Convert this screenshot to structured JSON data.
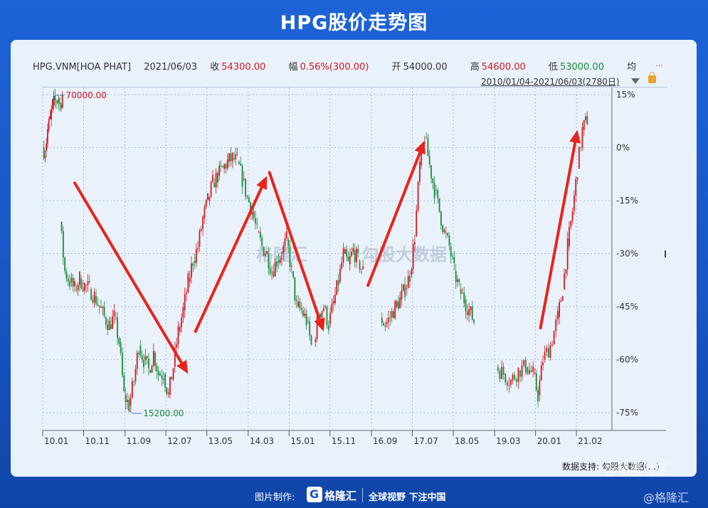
{
  "page": {
    "title": "HPG股价走势图",
    "made_by_label": "图片制作:",
    "logo_name": "格隆汇",
    "slogan": "全球视野 下注中国",
    "data_source": "数据支持: 勾股大数据(...)",
    "watermark_1": "格隆汇",
    "watermark_2": "勾股大数据",
    "corner_watermark_1": "@格隆社区",
    "corner_watermark_2": "@格隆汇"
  },
  "quote": {
    "symbol": "HPG.VNM[HOA PHAT]",
    "date": "2021/06/03",
    "close_label": "收",
    "close": "54300.00",
    "change_label": "幅",
    "change": "0.56%(300.00)",
    "open_label": "开",
    "open": "54000.00",
    "high_label": "高",
    "high": "54600.00",
    "low_label": "低",
    "low": "53000.00",
    "avg_label": "均",
    "more": "...",
    "range": "2010/01/04-2021/06/03(2780日)"
  },
  "colors": {
    "up": "#d0191f",
    "down": "#1a8a3a",
    "arrow": "#e8241c",
    "grid": "#9fb0c6",
    "annotation": "#1a73b8",
    "annotation_high": "#d0191f",
    "annotation_low": "#1a8a3a"
  },
  "chart_data": {
    "type": "candlestick",
    "y_axis": "percent",
    "ylim": [
      -80,
      17
    ],
    "yticks": [
      15,
      0,
      -15,
      -30,
      -45,
      -60,
      -75
    ],
    "ytick_labels": [
      "15%",
      "0%",
      "-15%",
      "-30%",
      "-45%",
      "-60%",
      "-75%"
    ],
    "xlim": [
      2010.0,
      2021.55
    ],
    "xticks": [
      2010.0,
      2011.0,
      2012.0,
      2013.0,
      2014.0,
      2015.0,
      2016.0,
      2017.0,
      2018.0,
      2019.0,
      2020.0,
      2021.0
    ],
    "xtick_values": [
      2010.0,
      2010.83,
      2011.67,
      2012.5,
      2013.33,
      2014.17,
      2015.0,
      2015.83,
      2016.67,
      2017.5,
      2018.33,
      2019.17,
      2020.0,
      2020.83
    ],
    "xtick_labels": [
      "10.01",
      "10.11",
      "11.09",
      "12.07",
      "13.05",
      "14.03",
      "15.01",
      "15.11",
      "16.09",
      "17.07",
      "18.05",
      "19.03",
      "20.01",
      "21.02"
    ],
    "grid": true,
    "annotations": [
      {
        "text": "70000.00",
        "kind": "high"
      },
      {
        "text": "15200.00",
        "kind": "low"
      }
    ],
    "trend_arrows": [
      {
        "from": [
          2010.65,
          -10
        ],
        "to": [
          2012.95,
          -64
        ]
      },
      {
        "from": [
          2013.1,
          -52
        ],
        "to": [
          2014.55,
          -8
        ]
      },
      {
        "from": [
          2014.6,
          -7
        ],
        "to": [
          2015.7,
          -52
        ]
      },
      {
        "from": [
          2016.6,
          -39
        ],
        "to": [
          2017.75,
          2
        ]
      },
      {
        "from": [
          2020.1,
          -51
        ],
        "to": [
          2020.85,
          5
        ]
      }
    ],
    "series": [
      {
        "x": [
          2010.0,
          2010.05,
          2010.1,
          2010.15,
          2010.2,
          2010.25,
          2010.3,
          2010.35,
          2010.4
        ],
        "y": [
          0,
          -1,
          5,
          8,
          12,
          13,
          14,
          12,
          15
        ]
      },
      {
        "x": [
          2010.35,
          2010.45,
          2010.55,
          2010.65,
          2010.75,
          2010.85,
          2010.95,
          2011.05,
          2011.15,
          2011.25,
          2011.35,
          2011.45,
          2011.55,
          2011.65,
          2011.75,
          2011.85,
          2011.95,
          2012.05,
          2012.15,
          2012.25,
          2012.35,
          2012.45,
          2012.55,
          2012.65,
          2012.75,
          2012.85,
          2012.95,
          2013.05,
          2013.15,
          2013.25,
          2013.35,
          2013.45,
          2013.55,
          2013.65,
          2013.75,
          2013.85,
          2013.95,
          2014.05,
          2014.15,
          2014.25,
          2014.35,
          2014.45,
          2014.55,
          2014.65,
          2014.75,
          2014.85,
          2014.95,
          2015.05,
          2015.15,
          2015.25,
          2015.35,
          2015.45
        ],
        "y": [
          -21,
          -35,
          -38,
          -40,
          -37,
          -39,
          -40,
          -42,
          -45,
          -48,
          -50,
          -48,
          -55,
          -70,
          -73,
          -66,
          -56,
          -60,
          -63,
          -58,
          -64,
          -64,
          -70,
          -62,
          -52,
          -46,
          -38,
          -32,
          -28,
          -20,
          -15,
          -10,
          -8,
          -6,
          -4,
          -3,
          -4,
          -9,
          -14,
          -18,
          -24,
          -28,
          -30,
          -35,
          -32,
          -30,
          -26,
          -35,
          -45,
          -46,
          -49,
          -56
        ]
      },
      {
        "x": [
          2015.5,
          2015.6,
          2015.7,
          2015.8,
          2015.9,
          2016.0,
          2016.1,
          2016.2,
          2016.3,
          2016.4,
          2016.5
        ],
        "y": [
          -55,
          -47,
          -45,
          -50,
          -44,
          -38,
          -30,
          -33,
          -29,
          -32,
          -35
        ]
      },
      {
        "x": [
          2016.85,
          2016.95,
          2017.05,
          2017.15,
          2017.25,
          2017.35,
          2017.45,
          2017.55,
          2017.65,
          2017.75,
          2017.85,
          2017.95,
          2018.05,
          2018.15,
          2018.25,
          2018.35,
          2018.45,
          2018.55,
          2018.65,
          2018.75
        ],
        "y": [
          -48,
          -50,
          -48,
          -45,
          -43,
          -40,
          -36,
          -25,
          -5,
          3,
          -5,
          -12,
          -18,
          -24,
          -28,
          -35,
          -40,
          -43,
          -46,
          -49
        ]
      },
      {
        "x": [
          2019.2,
          2019.35,
          2019.5,
          2019.65,
          2019.8,
          2019.95,
          2020.05,
          2020.15,
          2020.3,
          2020.45,
          2020.55,
          2020.65,
          2020.75,
          2020.85,
          2020.95,
          2021.05
        ],
        "y": [
          -62,
          -64,
          -66,
          -63,
          -62,
          -64,
          -70,
          -60,
          -56,
          -48,
          -40,
          -28,
          -18,
          -6,
          5,
          8
        ]
      }
    ]
  }
}
